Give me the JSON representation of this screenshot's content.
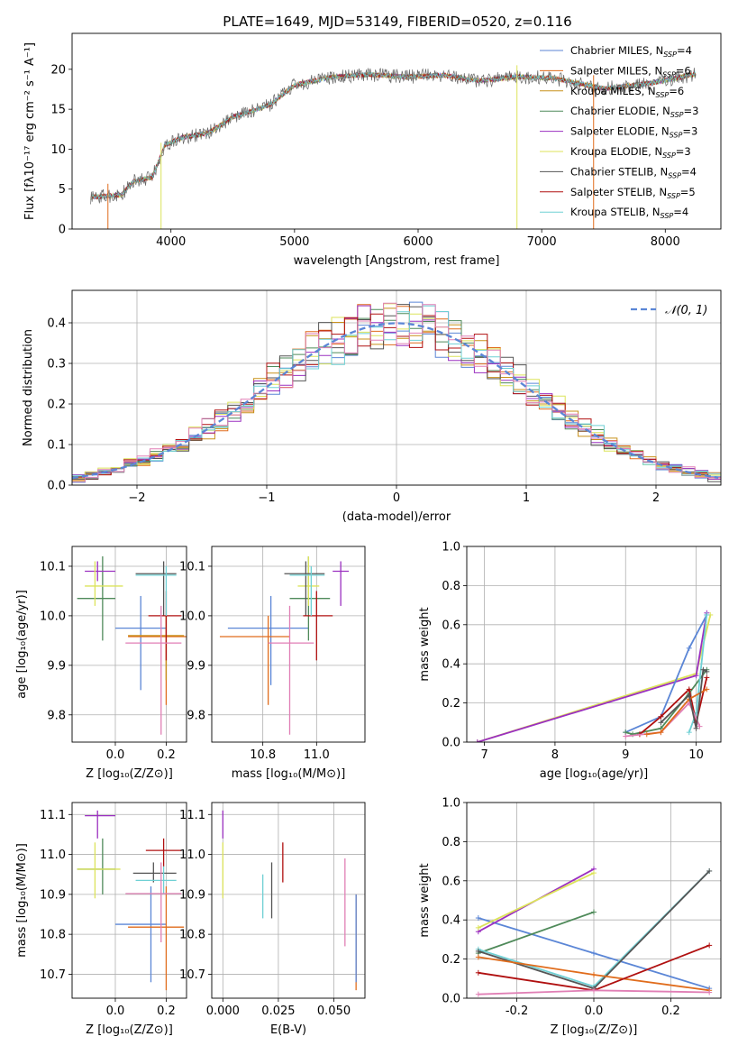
{
  "figure_title": "PLATE=1649, MJD=53149, FIBERID=0520, z=0.116",
  "colors": {
    "Chabrier MILES": "#5b86d6",
    "Salpeter MILES": "#e06c1c",
    "Kroupa MILES": "#c8901a",
    "Chabrier ELODIE": "#4f8a5a",
    "Salpeter ELODIE": "#9b30c0",
    "Kroupa ELODIE": "#dce35a",
    "Chabrier STELIB": "#555555",
    "Salpeter STELIB": "#b01010",
    "Kroupa STELIB": "#6fd0d4",
    "pink": "#e07fb5",
    "gaussian": "#5b86d6",
    "grid": "#b0b0b0"
  },
  "chart_data": [
    {
      "id": "spectrum",
      "type": "line",
      "title": "PLATE=1649, MJD=53149, FIBERID=0520, z=0.116",
      "xlabel": "wavelength [Angstrom, rest frame]",
      "ylabel": "Flux [fλ10⁻¹⁷ erg cm⁻² s⁻¹ A⁻¹]",
      "xlim": [
        3200,
        8450
      ],
      "ylim": [
        0,
        24.5
      ],
      "xticks": [
        4000,
        5000,
        6000,
        7000,
        8000
      ],
      "yticks": [
        0,
        5,
        10,
        15,
        20
      ],
      "grid": false,
      "legend_position": "top-right",
      "legend": [
        {
          "name": "Chabrier MILES, N",
          "sub": "SSP",
          "tail": "=4"
        },
        {
          "name": "Salpeter MILES, N",
          "sub": "SSP",
          "tail": "=6"
        },
        {
          "name": "Kroupa MILES, N",
          "sub": "SSP",
          "tail": "=6"
        },
        {
          "name": "Chabrier ELODIE, N",
          "sub": "SSP",
          "tail": "=3"
        },
        {
          "name": "Salpeter ELODIE, N",
          "sub": "SSP",
          "tail": "=3"
        },
        {
          "name": "Kroupa ELODIE, N",
          "sub": "SSP",
          "tail": "=3"
        },
        {
          "name": "Chabrier STELIB, N",
          "sub": "SSP",
          "tail": "=4"
        },
        {
          "name": "Salpeter STELIB, N",
          "sub": "SSP",
          "tail": "=5"
        },
        {
          "name": "Kroupa STELIB, N",
          "sub": "SSP",
          "tail": "=4"
        }
      ],
      "spectrum_envelope": [
        [
          3350,
          5.5
        ],
        [
          3600,
          5.8
        ],
        [
          3700,
          7.5
        ],
        [
          3850,
          8.0
        ],
        [
          3950,
          12.0
        ],
        [
          4100,
          13.0
        ],
        [
          4300,
          13.5
        ],
        [
          4500,
          15.5
        ],
        [
          4800,
          17.0
        ],
        [
          5000,
          19.5
        ],
        [
          5300,
          20.5
        ],
        [
          5600,
          20.8
        ],
        [
          5900,
          20.5
        ],
        [
          6200,
          20.7
        ],
        [
          6500,
          20.0
        ],
        [
          6800,
          20.5
        ],
        [
          7100,
          20.3
        ],
        [
          7500,
          19.0
        ],
        [
          7800,
          19.5
        ],
        [
          8000,
          20.0
        ],
        [
          8250,
          20.8
        ]
      ]
    },
    {
      "id": "residual_hist",
      "type": "line",
      "xlabel": "(data-model)/error",
      "ylabel": "Normed distribution",
      "xlim": [
        -2.5,
        2.5
      ],
      "ylim": [
        0,
        0.48
      ],
      "xticks": [
        -2,
        -1,
        0,
        1,
        2
      ],
      "yticks": [
        0.0,
        0.1,
        0.2,
        0.3,
        0.4
      ],
      "grid": true,
      "legend_position": "top-right",
      "legend_label": "𝒩(0, 1)",
      "bin_width": 0.1
    },
    {
      "id": "age_vs_Z",
      "type": "scatter",
      "xlabel": "Z [log₁₀(Z/Z⊙)]",
      "ylabel": "age  [log₁₀(age/yr)]",
      "xlim": [
        -0.17,
        0.28
      ],
      "ylim": [
        9.745,
        10.14
      ],
      "xticks": [
        0.0,
        0.2
      ],
      "yticks": [
        9.8,
        9.9,
        10.0,
        10.1
      ],
      "grid": true,
      "points": [
        {
          "s": "Chabrier MILES",
          "x": 0.1,
          "y": 9.975,
          "xe": [
            0.0,
            0.2
          ],
          "ye": [
            9.85,
            10.04
          ]
        },
        {
          "s": "Salpeter MILES",
          "x": 0.2,
          "y": 9.958,
          "xe": [
            0.05,
            0.28
          ],
          "ye": [
            9.82,
            10.0
          ]
        },
        {
          "s": "Kroupa MILES",
          "x": 0.2,
          "y": 9.96,
          "xe": [
            0.05,
            0.27
          ],
          "ye": [
            9.87,
            10.0
          ]
        },
        {
          "s": "Chabrier ELODIE",
          "x": -0.05,
          "y": 10.035,
          "xe": [
            -0.15,
            0.0
          ],
          "ye": [
            9.95,
            10.12
          ]
        },
        {
          "s": "Salpeter ELODIE",
          "x": -0.07,
          "y": 10.09,
          "xe": [
            -0.12,
            0.0
          ],
          "ye": [
            10.07,
            10.11
          ]
        },
        {
          "s": "Kroupa ELODIE",
          "x": -0.08,
          "y": 10.06,
          "xe": [
            -0.12,
            0.03
          ],
          "ye": [
            10.02,
            10.11
          ]
        },
        {
          "s": "Chabrier STELIB",
          "x": 0.19,
          "y": 10.085,
          "xe": [
            0.08,
            0.24
          ],
          "ye": [
            10.0,
            10.11
          ]
        },
        {
          "s": "Salpeter STELIB",
          "x": 0.2,
          "y": 10.0,
          "xe": [
            0.13,
            0.26
          ],
          "ye": [
            9.91,
            10.05
          ]
        },
        {
          "s": "Kroupa STELIB",
          "x": 0.2,
          "y": 10.082,
          "xe": [
            0.08,
            0.24
          ],
          "ye": [
            10.0,
            10.1
          ]
        },
        {
          "s": "pink",
          "x": 0.18,
          "y": 9.945,
          "xe": [
            0.04,
            0.26
          ],
          "ye": [
            9.76,
            10.02
          ]
        }
      ]
    },
    {
      "id": "age_vs_mass",
      "type": "scatter",
      "xlabel": "mass [log₁₀(M/M⊙)]",
      "ylabel": "",
      "xlim": [
        10.61,
        11.18
      ],
      "ylim": [
        9.745,
        10.14
      ],
      "xticks": [
        10.8,
        11.0
      ],
      "yticks": [
        9.8,
        9.9,
        10.0,
        10.1
      ],
      "grid": true,
      "points": [
        {
          "s": "Chabrier MILES",
          "x": 10.83,
          "y": 9.975,
          "xe": [
            10.67,
            10.97
          ],
          "ye": [
            9.86,
            10.04
          ]
        },
        {
          "s": "Salpeter MILES",
          "x": 10.82,
          "y": 9.958,
          "xe": [
            10.64,
            10.9
          ],
          "ye": [
            9.82,
            10.0
          ]
        },
        {
          "s": "Chabrier ELODIE",
          "x": 10.97,
          "y": 10.035,
          "xe": [
            10.9,
            11.05
          ],
          "ye": [
            9.95,
            10.12
          ]
        },
        {
          "s": "Salpeter ELODIE",
          "x": 11.09,
          "y": 10.09,
          "xe": [
            11.06,
            11.12
          ],
          "ye": [
            10.02,
            10.11
          ]
        },
        {
          "s": "Kroupa ELODIE",
          "x": 10.97,
          "y": 10.06,
          "xe": [
            10.93,
            11.01
          ],
          "ye": [
            10.02,
            10.12
          ]
        },
        {
          "s": "Chabrier STELIB",
          "x": 10.96,
          "y": 10.085,
          "xe": [
            10.88,
            11.03
          ],
          "ye": [
            10.0,
            10.11
          ]
        },
        {
          "s": "Salpeter STELIB",
          "x": 11.0,
          "y": 10.0,
          "xe": [
            10.95,
            11.06
          ],
          "ye": [
            9.91,
            10.05
          ]
        },
        {
          "s": "Kroupa STELIB",
          "x": 10.98,
          "y": 10.082,
          "xe": [
            10.9,
            11.03
          ],
          "ye": [
            10.0,
            10.1
          ]
        },
        {
          "s": "pink",
          "x": 10.9,
          "y": 9.945,
          "xe": [
            10.82,
            10.99
          ],
          "ye": [
            9.76,
            10.02
          ]
        }
      ]
    },
    {
      "id": "mass_vs_Z",
      "type": "scatter",
      "xlabel": "Z [log₁₀(Z/Z⊙)]",
      "ylabel": "mass [log₁₀(M/M⊙)]",
      "xlim": [
        -0.17,
        0.28
      ],
      "ylim": [
        10.64,
        11.13
      ],
      "xticks": [
        0.0,
        0.2
      ],
      "yticks": [
        10.7,
        10.8,
        10.9,
        11.0,
        11.1
      ],
      "grid": true,
      "points": [
        {
          "s": "Chabrier MILES",
          "x": 0.14,
          "y": 10.825,
          "xe": [
            0.0,
            0.2
          ],
          "ye": [
            10.68,
            10.92
          ]
        },
        {
          "s": "Salpeter MILES",
          "x": 0.2,
          "y": 10.818,
          "xe": [
            0.05,
            0.27
          ],
          "ye": [
            10.66,
            10.92
          ]
        },
        {
          "s": "Chabrier ELODIE",
          "x": -0.05,
          "y": 10.963,
          "xe": [
            -0.15,
            0.0
          ],
          "ye": [
            10.9,
            11.04
          ]
        },
        {
          "s": "Salpeter ELODIE",
          "x": -0.07,
          "y": 11.097,
          "xe": [
            -0.12,
            0.0
          ],
          "ye": [
            11.04,
            11.11
          ]
        },
        {
          "s": "Kroupa ELODIE",
          "x": -0.08,
          "y": 10.963,
          "xe": [
            -0.15,
            0.02
          ],
          "ye": [
            10.89,
            11.03
          ]
        },
        {
          "s": "Chabrier STELIB",
          "x": 0.15,
          "y": 10.953,
          "xe": [
            0.07,
            0.24
          ],
          "ye": [
            10.93,
            10.98
          ]
        },
        {
          "s": "Salpeter STELIB",
          "x": 0.19,
          "y": 11.01,
          "xe": [
            0.12,
            0.26
          ],
          "ye": [
            10.97,
            11.04
          ]
        },
        {
          "s": "Kroupa STELIB",
          "x": 0.19,
          "y": 10.935,
          "xe": [
            0.08,
            0.24
          ],
          "ye": [
            10.9,
            10.97
          ]
        },
        {
          "s": "pink",
          "x": 0.18,
          "y": 10.902,
          "xe": [
            0.04,
            0.26
          ],
          "ye": [
            10.78,
            10.98
          ]
        }
      ]
    },
    {
      "id": "mass_vs_ebv",
      "type": "scatter",
      "xlabel": "E(B-V)",
      "ylabel": "",
      "xlim": [
        -0.005,
        0.064
      ],
      "ylim": [
        10.64,
        11.13
      ],
      "xticks": [
        0.0,
        0.025,
        0.05
      ],
      "ytick_labels": [
        "10.7",
        "10.8",
        "10.9",
        "11.0",
        "11.1"
      ],
      "yticks": [
        10.7,
        10.8,
        10.9,
        11.0,
        11.1
      ],
      "grid": true,
      "points": [
        {
          "s": "Salpeter MILES",
          "x": 0.06,
          "y": 10.8,
          "xe": [
            0.06,
            0.06
          ],
          "ye": [
            10.66,
            10.9
          ]
        },
        {
          "s": "Salpeter ELODIE",
          "x": 0.0,
          "y": 11.09,
          "xe": [
            0.0,
            0.0
          ],
          "ye": [
            11.04,
            11.11
          ]
        },
        {
          "s": "Kroupa ELODIE",
          "x": 0.0,
          "y": 10.96,
          "xe": [
            0.0,
            0.0
          ],
          "ye": [
            10.89,
            11.03
          ]
        },
        {
          "s": "Chabrier STELIB",
          "x": 0.022,
          "y": 10.91,
          "xe": [
            0.022,
            0.022
          ],
          "ye": [
            10.84,
            10.98
          ]
        },
        {
          "s": "Salpeter STELIB",
          "x": 0.027,
          "y": 10.98,
          "xe": [
            0.027,
            0.027
          ],
          "ye": [
            10.93,
            11.03
          ]
        },
        {
          "s": "Kroupa STELIB",
          "x": 0.018,
          "y": 10.9,
          "xe": [
            0.018,
            0.018
          ],
          "ye": [
            10.84,
            10.95
          ]
        },
        {
          "s": "pink",
          "x": 0.055,
          "y": 10.88,
          "xe": [
            0.055,
            0.055
          ],
          "ye": [
            10.77,
            10.99
          ]
        },
        {
          "s": "Chabrier MILES",
          "x": 0.06,
          "y": 10.82,
          "xe": [
            0.06,
            0.06
          ],
          "ye": [
            10.68,
            10.9
          ]
        }
      ]
    },
    {
      "id": "massweight_vs_age",
      "type": "line",
      "xlabel": "age  [log₁₀(age/yr)]",
      "ylabel": "mass weight",
      "xlim": [
        6.75,
        10.35
      ],
      "ylim": [
        0,
        1.0
      ],
      "xticks": [
        7,
        8,
        9,
        10
      ],
      "yticks": [
        0.0,
        0.2,
        0.4,
        0.6,
        0.8,
        1.0
      ],
      "grid": true,
      "series": [
        {
          "s": "Kroupa ELODIE",
          "x": [
            6.9,
            10.0,
            10.2
          ],
          "y": [
            0.0,
            0.35,
            0.65
          ]
        },
        {
          "s": "Salpeter ELODIE",
          "x": [
            6.9,
            10.0,
            10.15
          ],
          "y": [
            0.0,
            0.34,
            0.66
          ]
        },
        {
          "s": "Chabrier MILES",
          "x": [
            9.0,
            9.5,
            9.9,
            10.15
          ],
          "y": [
            0.05,
            0.13,
            0.48,
            0.65
          ]
        },
        {
          "s": "Chabrier ELODIE",
          "x": [
            9.0,
            9.1,
            9.5,
            9.9,
            10.15
          ],
          "y": [
            0.05,
            0.04,
            0.07,
            0.25,
            0.37
          ]
        },
        {
          "s": "Kroupa STELIB",
          "x": [
            9.9,
            10.0,
            10.15
          ],
          "y": [
            0.05,
            0.15,
            0.65
          ]
        },
        {
          "s": "Salpeter STELIB",
          "x": [
            9.2,
            9.5,
            9.9,
            10.0,
            10.15
          ],
          "y": [
            0.04,
            0.13,
            0.27,
            0.1,
            0.33
          ]
        },
        {
          "s": "pink",
          "x": [
            9.0,
            9.5,
            9.9,
            10.05
          ],
          "y": [
            0.03,
            0.05,
            0.2,
            0.08
          ]
        },
        {
          "s": "Salpeter MILES",
          "x": [
            9.3,
            9.5,
            9.9,
            10.15
          ],
          "y": [
            0.04,
            0.05,
            0.22,
            0.27
          ]
        },
        {
          "s": "Chabrier STELIB",
          "x": [
            9.5,
            9.9,
            10.0,
            10.1,
            10.15
          ],
          "y": [
            0.1,
            0.24,
            0.07,
            0.37,
            0.36
          ]
        }
      ]
    },
    {
      "id": "massweight_vs_Z",
      "type": "line",
      "xlabel": "Z [log₁₀(Z/Z⊙)]",
      "ylabel": "mass weight",
      "xlim": [
        -0.33,
        0.33
      ],
      "ylim": [
        0,
        1.0
      ],
      "xticks": [
        -0.2,
        0.0,
        0.2
      ],
      "yticks": [
        0.0,
        0.2,
        0.4,
        0.6,
        0.8,
        1.0
      ],
      "grid": true,
      "series": [
        {
          "s": "Chabrier MILES",
          "x": [
            -0.3,
            0.0,
            0.3
          ],
          "y": [
            0.41,
            0.23,
            0.05
          ]
        },
        {
          "s": "Salpeter ELODIE",
          "x": [
            -0.3,
            0.0
          ],
          "y": [
            0.34,
            0.66
          ]
        },
        {
          "s": "Kroupa ELODIE",
          "x": [
            -0.3,
            0.0
          ],
          "y": [
            0.36,
            0.64
          ]
        },
        {
          "s": "Chabrier ELODIE",
          "x": [
            -0.3,
            0.0
          ],
          "y": [
            0.23,
            0.44
          ]
        },
        {
          "s": "Kroupa STELIB",
          "x": [
            -0.3,
            0.0,
            0.3
          ],
          "y": [
            0.25,
            0.06,
            0.65
          ]
        },
        {
          "s": "Chabrier STELIB",
          "x": [
            -0.3,
            0.0,
            0.3
          ],
          "y": [
            0.24,
            0.05,
            0.65
          ]
        },
        {
          "s": "Salpeter MILES",
          "x": [
            -0.3,
            0.0,
            0.3
          ],
          "y": [
            0.21,
            0.12,
            0.04
          ]
        },
        {
          "s": "Salpeter STELIB",
          "x": [
            -0.3,
            0.0,
            0.3
          ],
          "y": [
            0.13,
            0.04,
            0.27
          ]
        },
        {
          "s": "pink",
          "x": [
            -0.3,
            0.0,
            0.3
          ],
          "y": [
            0.02,
            0.04,
            0.03
          ]
        }
      ]
    }
  ]
}
